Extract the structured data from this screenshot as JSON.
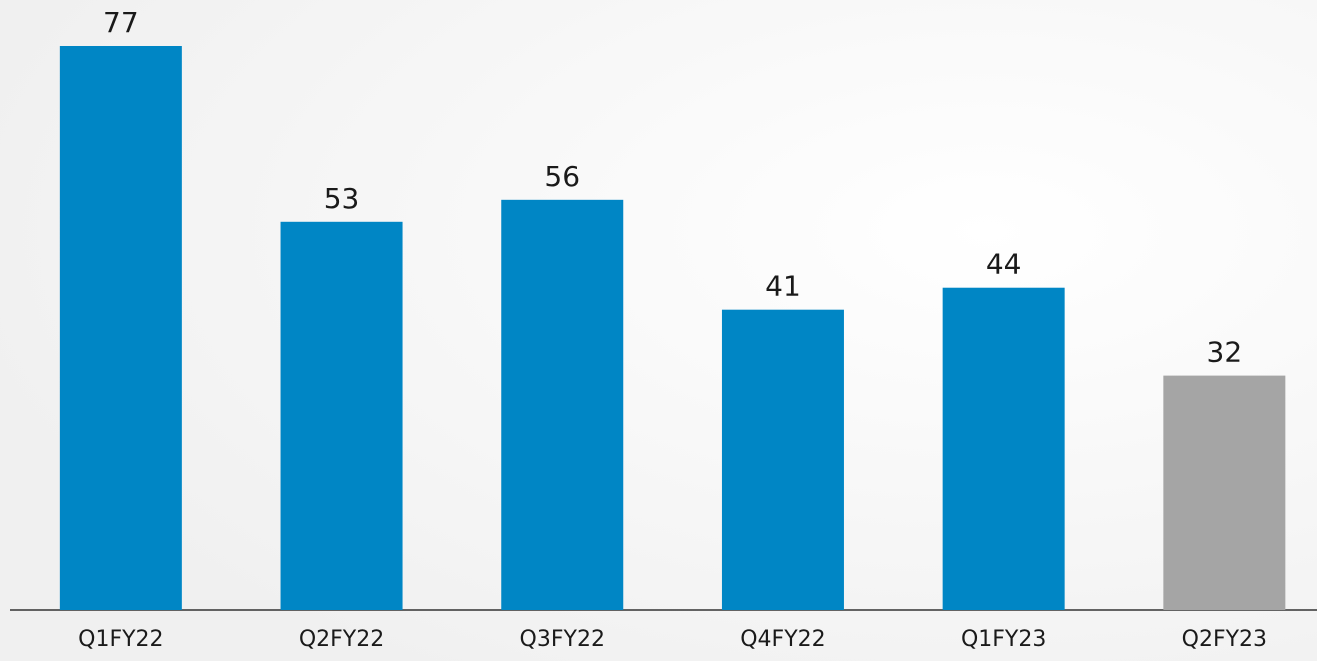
{
  "chart_data": {
    "type": "bar",
    "categories": [
      "Q1FY22",
      "Q2FY22",
      "Q3FY22",
      "Q4FY22",
      "Q1FY23",
      "Q2FY23"
    ],
    "values": [
      77,
      53,
      56,
      41,
      44,
      32
    ],
    "colors": [
      "#0086c5",
      "#0086c5",
      "#0086c5",
      "#0086c5",
      "#0086c5",
      "#a5a5a5"
    ]
  }
}
